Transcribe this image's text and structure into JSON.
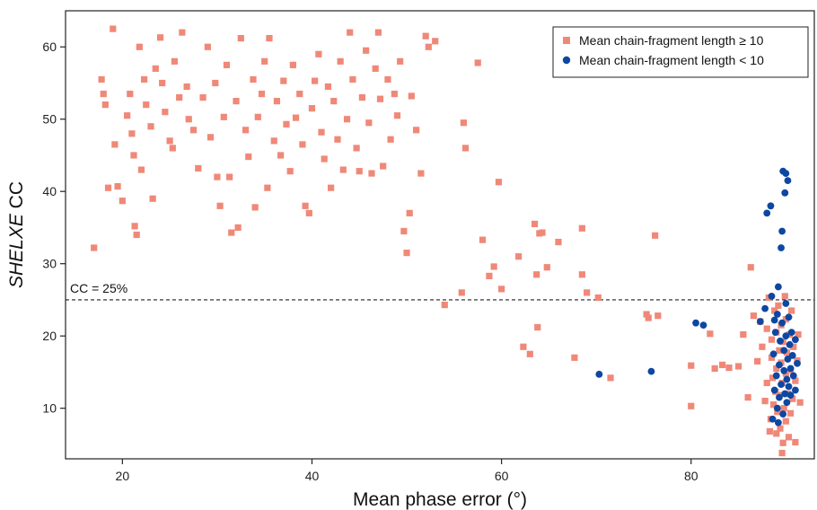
{
  "chart_data": {
    "type": "scatter",
    "xlabel": "Mean phase error (°)",
    "ylabel_italic": "SHELXE",
    "ylabel_rest": " CC",
    "xlim": [
      14,
      93
    ],
    "ylim": [
      3,
      65
    ],
    "x_ticks": [
      20,
      40,
      60,
      80
    ],
    "y_ticks": [
      10,
      20,
      30,
      40,
      50,
      60
    ],
    "grid": false,
    "legend_position": "top-right",
    "reference_line": {
      "y": 25,
      "label": "CC = 25%"
    },
    "series": [
      {
        "name": "Mean chain-fragment length ≥ 10",
        "marker": "square",
        "color": "#F08878",
        "points": [
          [
            17,
            32.2
          ],
          [
            17.8,
            55.5
          ],
          [
            18,
            53.5
          ],
          [
            18.2,
            52
          ],
          [
            18.5,
            40.5
          ],
          [
            19,
            62.5
          ],
          [
            19.2,
            46.5
          ],
          [
            19.5,
            40.7
          ],
          [
            20,
            38.7
          ],
          [
            20.5,
            50.5
          ],
          [
            20.8,
            53.5
          ],
          [
            21,
            48
          ],
          [
            21.2,
            45
          ],
          [
            21.3,
            35.2
          ],
          [
            21.5,
            34
          ],
          [
            21.8,
            60
          ],
          [
            22,
            43
          ],
          [
            22.3,
            55.5
          ],
          [
            22.5,
            52
          ],
          [
            23,
            49
          ],
          [
            23.2,
            39
          ],
          [
            23.5,
            57
          ],
          [
            24,
            61.3
          ],
          [
            24.2,
            55
          ],
          [
            24.5,
            51
          ],
          [
            25,
            47
          ],
          [
            25.3,
            46
          ],
          [
            25.5,
            58
          ],
          [
            26,
            53
          ],
          [
            26.3,
            62
          ],
          [
            26.8,
            54.5
          ],
          [
            27,
            50
          ],
          [
            27.5,
            48.5
          ],
          [
            28,
            43.2
          ],
          [
            28.5,
            53
          ],
          [
            29,
            60
          ],
          [
            29.3,
            47.5
          ],
          [
            29.8,
            55
          ],
          [
            30,
            42
          ],
          [
            30.3,
            38
          ],
          [
            30.7,
            50.3
          ],
          [
            31,
            57.5
          ],
          [
            31.3,
            42
          ],
          [
            31.5,
            34.3
          ],
          [
            32,
            52.5
          ],
          [
            32.2,
            35
          ],
          [
            32.5,
            61.2
          ],
          [
            33,
            48.5
          ],
          [
            33.3,
            44.8
          ],
          [
            33.8,
            55.5
          ],
          [
            34,
            37.8
          ],
          [
            34.3,
            50.3
          ],
          [
            34.7,
            53.5
          ],
          [
            35,
            58
          ],
          [
            35.3,
            40.5
          ],
          [
            35.5,
            61.2
          ],
          [
            36,
            47
          ],
          [
            36.3,
            52.5
          ],
          [
            36.7,
            45
          ],
          [
            37,
            55.3
          ],
          [
            37.3,
            49.3
          ],
          [
            37.7,
            42.8
          ],
          [
            38,
            57.5
          ],
          [
            38.3,
            50.2
          ],
          [
            38.7,
            53.5
          ],
          [
            39,
            46.5
          ],
          [
            39.3,
            38
          ],
          [
            39.7,
            37
          ],
          [
            40,
            51.5
          ],
          [
            40.3,
            55.3
          ],
          [
            40.7,
            59
          ],
          [
            41,
            48.2
          ],
          [
            41.3,
            44.5
          ],
          [
            41.7,
            54.5
          ],
          [
            42,
            40.5
          ],
          [
            42.3,
            52.5
          ],
          [
            42.7,
            47.2
          ],
          [
            43,
            58
          ],
          [
            43.3,
            43
          ],
          [
            43.7,
            50
          ],
          [
            44,
            62
          ],
          [
            44.3,
            55.5
          ],
          [
            44.7,
            46
          ],
          [
            45,
            42.8
          ],
          [
            45.3,
            53
          ],
          [
            45.7,
            59.5
          ],
          [
            46,
            49.5
          ],
          [
            46.3,
            42.5
          ],
          [
            46.7,
            57
          ],
          [
            47,
            62
          ],
          [
            47.2,
            52.8
          ],
          [
            47.5,
            43.5
          ],
          [
            48,
            55.5
          ],
          [
            48.3,
            47.2
          ],
          [
            48.7,
            53.5
          ],
          [
            49,
            50.5
          ],
          [
            49.3,
            58
          ],
          [
            49.7,
            34.5
          ],
          [
            50,
            31.5
          ],
          [
            50.3,
            37
          ],
          [
            50.5,
            53.2
          ],
          [
            51,
            48.5
          ],
          [
            51.5,
            42.5
          ],
          [
            52,
            61.5
          ],
          [
            52.3,
            60
          ],
          [
            53,
            60.8
          ],
          [
            54,
            24.3
          ],
          [
            55.8,
            26
          ],
          [
            56,
            49.5
          ],
          [
            56.2,
            46
          ],
          [
            57.5,
            57.8
          ],
          [
            58,
            33.3
          ],
          [
            58.7,
            28.3
          ],
          [
            59.2,
            29.6
          ],
          [
            59.7,
            41.3
          ],
          [
            60,
            26.5
          ],
          [
            61.8,
            31
          ],
          [
            62.3,
            18.5
          ],
          [
            63,
            17.5
          ],
          [
            63.5,
            35.5
          ],
          [
            63.7,
            28.5
          ],
          [
            63.8,
            21.2
          ],
          [
            64,
            34.2
          ],
          [
            64.3,
            34.3
          ],
          [
            64.8,
            29.5
          ],
          [
            66,
            33
          ],
          [
            67.7,
            17
          ],
          [
            68.5,
            34.9
          ],
          [
            68.5,
            28.5
          ],
          [
            69,
            26
          ],
          [
            70.2,
            25.3
          ],
          [
            71.5,
            14.2
          ],
          [
            75.3,
            23
          ],
          [
            75.5,
            22.5
          ],
          [
            76.2,
            33.9
          ],
          [
            76.5,
            22.8
          ],
          [
            80,
            15.9
          ],
          [
            80,
            10.3
          ],
          [
            82,
            20.3
          ],
          [
            82.5,
            15.5
          ],
          [
            83.3,
            16
          ],
          [
            84,
            15.6
          ],
          [
            85,
            15.8
          ],
          [
            85.5,
            20.2
          ],
          [
            86,
            11.5
          ],
          [
            86.3,
            29.5
          ],
          [
            86.6,
            22.8
          ],
          [
            87,
            16.5
          ],
          [
            87.3,
            22
          ],
          [
            87.5,
            18.5
          ],
          [
            87.8,
            11
          ],
          [
            88,
            21
          ],
          [
            88,
            13.5
          ],
          [
            88.2,
            25.3
          ],
          [
            88.4,
            8.5
          ],
          [
            88.5,
            19.5
          ],
          [
            88.5,
            17
          ],
          [
            88.6,
            14.2
          ],
          [
            88.7,
            10.5
          ],
          [
            88.8,
            23.5
          ],
          [
            88.9,
            12.3
          ],
          [
            89,
            20.5
          ],
          [
            89,
            6.5
          ],
          [
            89,
            15.5
          ],
          [
            89.1,
            9.5
          ],
          [
            89.2,
            24.2
          ],
          [
            89.3,
            18
          ],
          [
            89.3,
            11.8
          ],
          [
            89.4,
            7.2
          ],
          [
            89.5,
            21.5
          ],
          [
            89.5,
            16.3
          ],
          [
            89.6,
            13.5
          ],
          [
            89.7,
            5.2
          ],
          [
            89.7,
            19.2
          ],
          [
            89.8,
            10
          ],
          [
            89.9,
            25.5
          ],
          [
            90,
            22.3
          ],
          [
            90,
            14.8
          ],
          [
            90,
            8.2
          ],
          [
            90.1,
            17.7
          ],
          [
            90.2,
            12
          ],
          [
            90.3,
            6
          ],
          [
            90.4,
            20.2
          ],
          [
            90.5,
            15.3
          ],
          [
            90.5,
            9.3
          ],
          [
            90.6,
            23.5
          ],
          [
            90.7,
            11.3
          ],
          [
            90.8,
            18.5
          ],
          [
            91,
            13.8
          ],
          [
            91,
            5.3
          ],
          [
            91.2,
            16.6
          ],
          [
            91.3,
            20.2
          ],
          [
            91.5,
            10.8
          ],
          [
            89.6,
            3.8
          ],
          [
            88.3,
            6.8
          ]
        ]
      },
      {
        "name": "Mean chain-fragment length < 10",
        "marker": "circle",
        "color": "#0D47A1",
        "points": [
          [
            70.3,
            14.7
          ],
          [
            75.8,
            15.1
          ],
          [
            80.5,
            21.8
          ],
          [
            81.3,
            21.5
          ],
          [
            87.3,
            22
          ],
          [
            87.8,
            23.8
          ],
          [
            88,
            37
          ],
          [
            88.4,
            38
          ],
          [
            88.5,
            25.5
          ],
          [
            88.6,
            8.5
          ],
          [
            88.7,
            17.5
          ],
          [
            88.8,
            12.5
          ],
          [
            88.9,
            20.5
          ],
          [
            89,
            14.5
          ],
          [
            89.1,
            10
          ],
          [
            89.1,
            23
          ],
          [
            89.2,
            26.8
          ],
          [
            89.3,
            16
          ],
          [
            89.3,
            11.5
          ],
          [
            89.4,
            19.3
          ],
          [
            89.5,
            32.2
          ],
          [
            89.5,
            13.3
          ],
          [
            89.6,
            21.8
          ],
          [
            89.6,
            34.5
          ],
          [
            89.7,
            42.8
          ],
          [
            89.7,
            9.2
          ],
          [
            89.8,
            18
          ],
          [
            89.8,
            15.2
          ],
          [
            89.9,
            39.8
          ],
          [
            89.9,
            12
          ],
          [
            90,
            42.5
          ],
          [
            90,
            20
          ],
          [
            90,
            24.5
          ],
          [
            90.1,
            14
          ],
          [
            90.1,
            10.8
          ],
          [
            90.2,
            41.5
          ],
          [
            90.2,
            16.8
          ],
          [
            90.3,
            22.6
          ],
          [
            90.3,
            13
          ],
          [
            90.4,
            18.8
          ],
          [
            90.5,
            15.5
          ],
          [
            90.5,
            11.8
          ],
          [
            90.6,
            20.5
          ],
          [
            90.7,
            17.3
          ],
          [
            90.8,
            14.5
          ],
          [
            91,
            19.5
          ],
          [
            91,
            12.5
          ],
          [
            91.2,
            16.2
          ],
          [
            88.8,
            22.2
          ],
          [
            89.2,
            8
          ]
        ]
      }
    ]
  }
}
